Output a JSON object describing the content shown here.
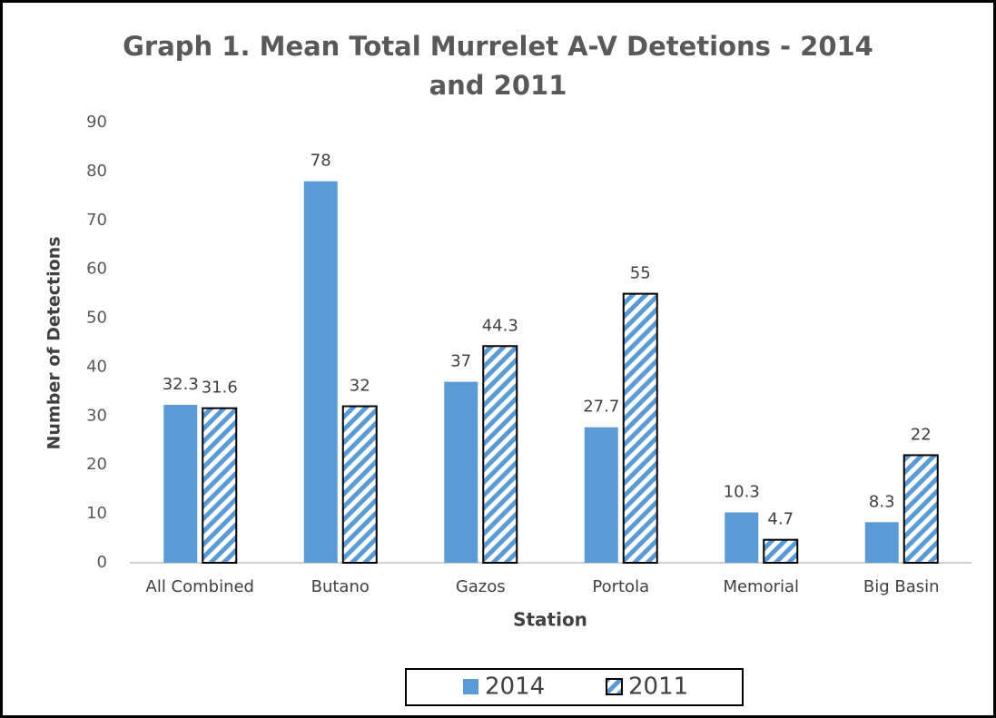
{
  "chart_data": {
    "type": "bar",
    "title": "Graph 1. Mean Total Murrelet A-V Detetions - 2014 and 2011",
    "x_label": "Station",
    "y_label": "Number of Detections",
    "categories": [
      "All Combined",
      "Butano",
      "Gazos",
      "Portola",
      "Memorial",
      "Big Basin"
    ],
    "series": [
      {
        "name": "2014",
        "color": "#5b9bd5",
        "values": [
          32.3,
          78,
          37,
          27.7,
          10.3,
          8.3
        ]
      },
      {
        "name": "2011",
        "color": "#5b9bd5",
        "pattern": "hatch",
        "values": [
          31.6,
          32,
          44.3,
          55,
          4.7,
          22
        ]
      }
    ],
    "ylim": [
      0,
      90
    ],
    "yticks": [
      0,
      10,
      20,
      30,
      40,
      50,
      60,
      70,
      80,
      90
    ],
    "grid": false,
    "legend": "bottom"
  }
}
